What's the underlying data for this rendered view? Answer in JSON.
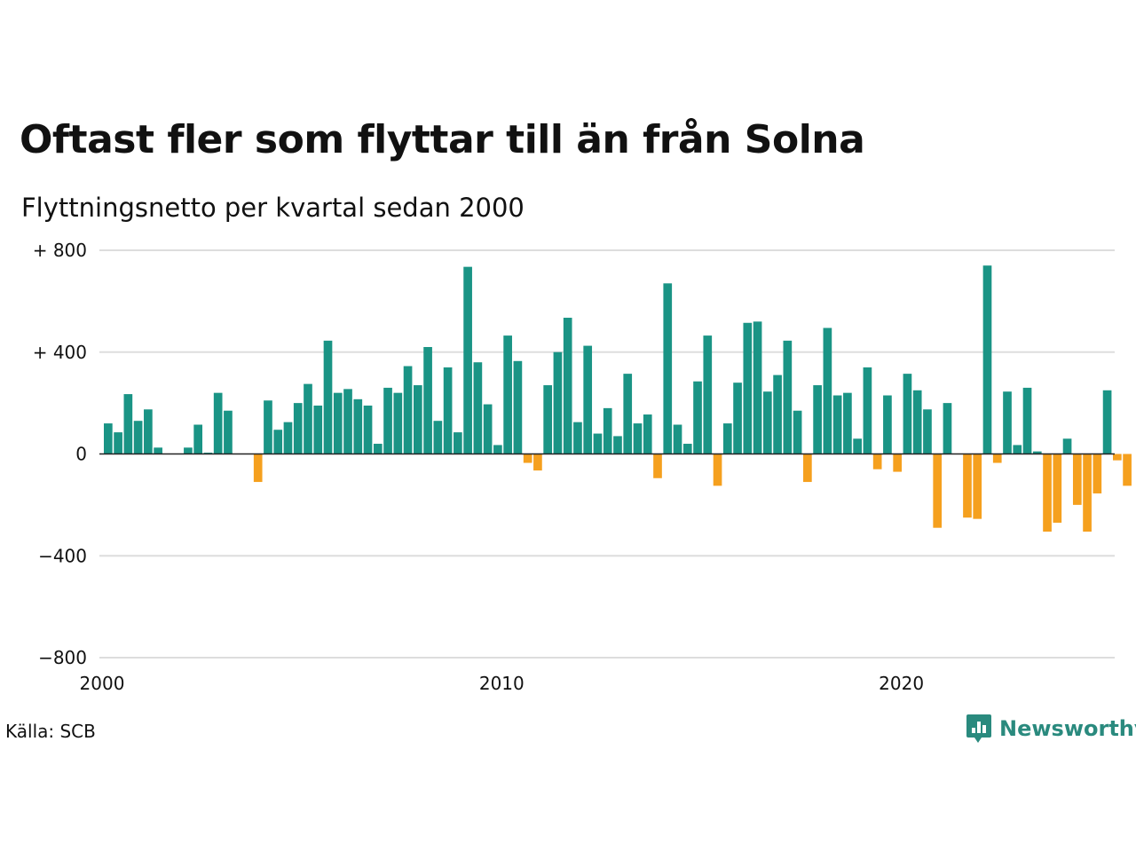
{
  "title": "Oftast fler som flyttar till än från Solna",
  "subtitle": "Flyttningsnetto per kvartal sedan 2000",
  "source": "Källa: SCB",
  "brand": {
    "name": "Newsworthy",
    "icon": "newsworthy-logo-icon",
    "color": "#2a8a7e"
  },
  "colors": {
    "positive": "#1a9485",
    "negative": "#f5a01e",
    "grid": "#dddddd",
    "zero": "#222222"
  },
  "chart_data": {
    "type": "bar",
    "title": "Oftast fler som flyttar till än från Solna",
    "subtitle": "Flyttningsnetto per kvartal sedan 2000",
    "xlabel": "",
    "ylabel": "",
    "x_start": 2000,
    "periods_per_year": 4,
    "xlim": [
      2000,
      2025.25
    ],
    "ylim": [
      -800,
      800
    ],
    "grid": true,
    "x_ticks": [
      2000,
      2010,
      2020
    ],
    "x_tick_labels": [
      "2000",
      "2010",
      "2020"
    ],
    "y_ticks": [
      800,
      400,
      0,
      -400,
      -800
    ],
    "y_tick_labels": [
      "+ 800",
      "+ 400",
      "0",
      "−400",
      "−800"
    ],
    "values": [
      120,
      85,
      235,
      130,
      175,
      25,
      0,
      0,
      25,
      115,
      5,
      240,
      170,
      0,
      0,
      -110,
      210,
      95,
      125,
      200,
      275,
      190,
      445,
      240,
      255,
      215,
      190,
      40,
      260,
      240,
      345,
      270,
      420,
      130,
      340,
      85,
      735,
      360,
      195,
      35,
      465,
      365,
      -35,
      -65,
      270,
      400,
      535,
      125,
      425,
      80,
      180,
      70,
      315,
      120,
      155,
      -95,
      670,
      115,
      40,
      285,
      465,
      -125,
      120,
      280,
      515,
      520,
      245,
      310,
      445,
      170,
      -110,
      270,
      495,
      230,
      240,
      60,
      340,
      -60,
      230,
      -70,
      315,
      250,
      175,
      -290,
      200,
      0,
      -250,
      -255,
      740,
      -35,
      245,
      35,
      260,
      10,
      -305,
      -270,
      60,
      -200,
      -305,
      -155,
      250,
      -25,
      -125
    ]
  }
}
